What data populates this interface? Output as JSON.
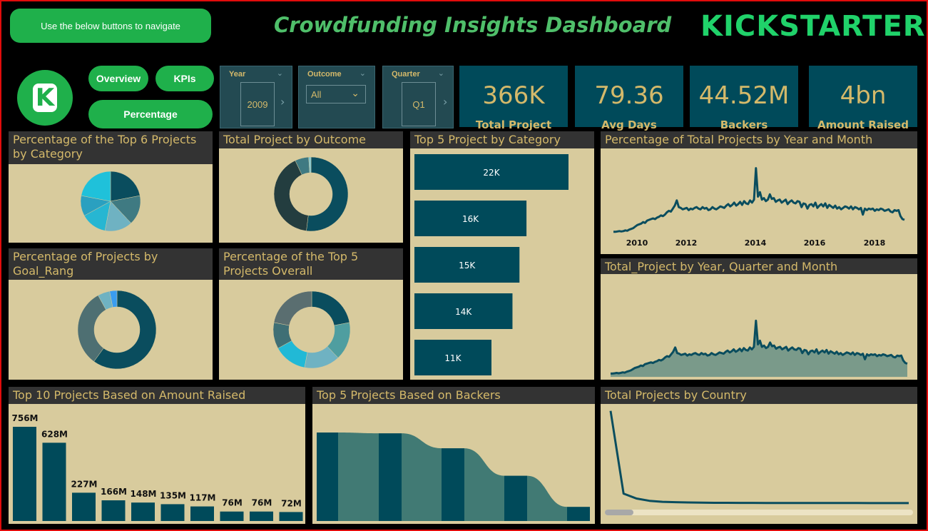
{
  "nav": {
    "helper_button": "Use the below buttons to navigate",
    "overview": "Overview",
    "kpis": "KPIs",
    "percentage": "Percentage"
  },
  "dashboard_title": "Crowdfunding Insights Dashboard",
  "brand_logo": "KICKSTARTER",
  "brand_badge": "K",
  "icons": {
    "brand_badge": "kickstarter-k-icon",
    "chevron": "chevron-down-icon",
    "arrow": "chevron-right-icon"
  },
  "colors": {
    "accent_green": "#1fb04b",
    "kpi_bg": "#004a5a",
    "card_bg": "#d8cb9d",
    "header_gold": "#d4b96a",
    "teal_dark": "#004a5a",
    "teal_mid": "#417a7e",
    "cyan": "#21b9d6"
  },
  "slicers": {
    "year": {
      "label": "Year",
      "value": "2009"
    },
    "outcome": {
      "label": "Outcome",
      "value": "All"
    },
    "quarter": {
      "label": "Quarter",
      "value": "Q1"
    }
  },
  "kpis": [
    {
      "value": "366K",
      "label": "Total Project"
    },
    {
      "value": "79.36",
      "label": "Avg Days"
    },
    {
      "value": "44.52M",
      "label": "Backers"
    },
    {
      "value": "4bn",
      "label": "Amount Raised"
    }
  ],
  "cards": {
    "top6_category": "Percentage of the Top 6 Projects by Category",
    "by_outcome": "Total Project by Outcome",
    "top5_category": "Top 5 Project by Category",
    "year_month": "Percentage of Total Projects by Year and Month",
    "goal_range": "Percentage of Projects by Goal_Rang",
    "top5_overall": "Percentage of the Top 5 Projects Overall",
    "year_quarter_month": "Total_Project by Year, Quarter and Month",
    "top10_amount": "Top 10 Projects Based on Amount Raised",
    "top5_backers": "Top 5 Projects Based on Backers",
    "by_country": "Total Projects by Country"
  },
  "chart_data": [
    {
      "id": "top6_category",
      "type": "pie",
      "values": [
        22,
        16,
        15,
        14,
        11,
        22
      ]
    },
    {
      "id": "by_outcome",
      "type": "pie",
      "values": [
        52,
        41,
        6,
        1
      ]
    },
    {
      "id": "top5_category",
      "type": "bar",
      "orientation": "horizontal",
      "values": [
        22,
        16,
        15,
        14,
        11
      ],
      "data_labels": [
        "22K",
        "16K",
        "15K",
        "14K",
        "11K"
      ]
    },
    {
      "id": "year_month",
      "type": "line",
      "x_ticks": [
        "2010",
        "2012",
        "2014",
        "2016",
        "2018"
      ],
      "values": [
        0.3,
        0.3,
        0.35,
        0.4,
        0.35,
        0.4,
        0.5,
        0.45,
        0.6,
        0.7,
        0.8,
        1.0,
        1.2,
        1.3,
        1.4,
        1.6,
        1.5,
        1.8,
        1.9,
        2.0,
        2.1,
        2.0,
        2.2,
        2.3,
        2.5,
        2.4,
        2.6,
        2.9,
        3.1,
        3.0,
        3.4,
        3.8,
        4.5,
        3.6,
        3.5,
        3.3,
        3.4,
        3.5,
        3.2,
        3.4,
        3.3,
        3.5,
        3.6,
        3.4,
        3.3,
        3.6,
        3.4,
        3.5,
        3.2,
        3.3,
        3.6,
        3.4,
        3.3,
        3.5,
        3.7,
        3.6,
        3.5,
        3.8,
        4.0,
        3.7,
        3.9,
        4.2,
        3.8,
        4.0,
        4.3,
        3.9,
        4.4,
        4.1,
        4.0,
        4.5,
        4.2,
        4.6,
        8.8,
        5.0,
        5.6,
        4.6,
        4.8,
        4.4,
        4.6,
        5.3,
        4.7,
        4.8,
        4.3,
        4.5,
        4.6,
        4.2,
        4.4,
        4.6,
        4.0,
        4.3,
        4.5,
        4.2,
        4.1,
        4.4,
        4.3,
        3.6,
        4.1,
        4.0,
        3.4,
        3.9,
        4.0,
        3.7,
        4.2,
        3.5,
        3.8,
        4.0,
        3.7,
        4.1,
        3.5,
        3.9,
        3.7,
        3.5,
        3.8,
        3.4,
        3.6,
        3.3,
        3.5,
        3.7,
        3.6,
        3.4,
        3.7,
        3.3,
        3.6,
        3.5,
        3.3,
        3.5,
        2.6,
        3.4,
        3.2,
        3.4,
        3.3,
        3.4,
        3.1,
        3.3,
        3.2,
        3.4,
        3.3,
        3.1,
        3.2,
        3.3,
        3.0,
        2.9,
        3.2,
        3.1,
        3.2,
        2.4,
        2.0,
        1.9
      ]
    },
    {
      "id": "year_quarter_month",
      "type": "area",
      "values": [
        0.3,
        0.3,
        0.35,
        0.4,
        0.35,
        0.4,
        0.5,
        0.45,
        0.6,
        0.7,
        0.8,
        1.0,
        1.2,
        1.3,
        1.4,
        1.6,
        1.5,
        1.8,
        1.9,
        2.0,
        2.1,
        2.0,
        2.2,
        2.3,
        2.5,
        2.4,
        2.6,
        2.9,
        3.1,
        3.0,
        3.4,
        3.8,
        4.5,
        3.6,
        3.5,
        3.3,
        3.4,
        3.5,
        3.2,
        3.4,
        3.3,
        3.5,
        3.6,
        3.4,
        3.3,
        3.6,
        3.4,
        3.5,
        3.2,
        3.3,
        3.6,
        3.4,
        3.3,
        3.5,
        3.7,
        3.6,
        3.5,
        3.8,
        4.0,
        3.7,
        3.9,
        4.2,
        3.8,
        4.0,
        4.3,
        3.9,
        4.4,
        4.1,
        4.0,
        4.5,
        4.2,
        4.6,
        8.8,
        5.0,
        5.6,
        4.6,
        4.8,
        4.4,
        4.6,
        5.3,
        4.7,
        4.8,
        4.3,
        4.5,
        4.6,
        4.2,
        4.4,
        4.6,
        4.0,
        4.3,
        4.5,
        4.2,
        4.1,
        4.4,
        4.3,
        3.6,
        4.1,
        4.0,
        3.4,
        3.9,
        4.0,
        3.7,
        4.2,
        3.5,
        3.8,
        4.0,
        3.7,
        4.1,
        3.5,
        3.9,
        3.7,
        3.5,
        3.8,
        3.4,
        3.6,
        3.3,
        3.5,
        3.7,
        3.6,
        3.4,
        3.7,
        3.3,
        3.6,
        3.5,
        3.3,
        3.5,
        2.6,
        3.4,
        3.2,
        3.4,
        3.3,
        3.4,
        3.1,
        3.3,
        3.2,
        3.4,
        3.3,
        3.1,
        3.2,
        3.3,
        3.0,
        2.9,
        3.2,
        3.1,
        3.2,
        2.4,
        2.0,
        1.9
      ]
    },
    {
      "id": "goal_range",
      "type": "pie",
      "values": [
        60,
        32,
        5,
        3
      ]
    },
    {
      "id": "top5_overall",
      "type": "pie",
      "values": [
        22,
        16,
        15,
        14,
        11,
        22
      ]
    },
    {
      "id": "top10_amount",
      "type": "bar",
      "values": [
        756,
        628,
        227,
        166,
        148,
        135,
        117,
        76,
        76,
        72
      ],
      "data_labels": [
        "756M",
        "628M",
        "227M",
        "166M",
        "148M",
        "135M",
        "117M",
        "76M",
        "76M",
        "72M"
      ]
    },
    {
      "id": "top5_backers",
      "type": "area",
      "values": [
        219,
        217,
        180,
        112,
        35
      ]
    },
    {
      "id": "by_country",
      "type": "line",
      "values": [
        292,
        40,
        25,
        18,
        15,
        14,
        13,
        12.5,
        12,
        12,
        11.8,
        11.7,
        11.6,
        11.5,
        11.5,
        11.4,
        11.3,
        11.3,
        11.2,
        11.2,
        11.1,
        11.1,
        11,
        11
      ]
    }
  ]
}
